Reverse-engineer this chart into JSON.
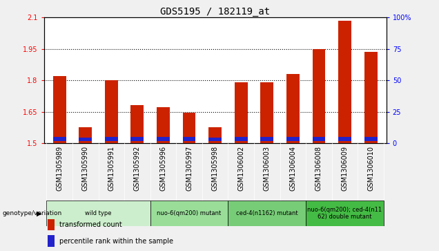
{
  "title": "GDS5195 / 182119_at",
  "samples": [
    "GSM1305989",
    "GSM1305990",
    "GSM1305991",
    "GSM1305992",
    "GSM1305996",
    "GSM1305997",
    "GSM1305998",
    "GSM1306002",
    "GSM1306003",
    "GSM1306004",
    "GSM1306008",
    "GSM1306009",
    "GSM1306010"
  ],
  "red_values": [
    1.82,
    1.575,
    1.8,
    1.68,
    1.67,
    1.645,
    1.575,
    1.79,
    1.79,
    1.83,
    1.95,
    2.085,
    1.935
  ],
  "blue_values": [
    0.022,
    0.018,
    0.022,
    0.022,
    0.022,
    0.02,
    0.018,
    0.02,
    0.02,
    0.022,
    0.022,
    0.022,
    0.022
  ],
  "ymin": 1.5,
  "ymax": 2.1,
  "yticks_left": [
    1.5,
    1.65,
    1.8,
    1.95,
    2.1
  ],
  "yticks_right": [
    0,
    25,
    50,
    75,
    100
  ],
  "bar_color": "#cc2200",
  "blue_color": "#2222cc",
  "genotype_groups": [
    {
      "label": "wild type",
      "start": 0,
      "end": 4,
      "color": "#cceecc"
    },
    {
      "label": "nuo-6(qm200) mutant",
      "start": 4,
      "end": 7,
      "color": "#99dd99"
    },
    {
      "label": "ced-4(n1162) mutant",
      "start": 7,
      "end": 10,
      "color": "#77cc77"
    },
    {
      "label": "nuo-6(qm200); ced-4(n11\n62) double mutant",
      "start": 10,
      "end": 13,
      "color": "#44bb44"
    }
  ],
  "genotype_label": "genotype/variation",
  "legend_red": "transformed count",
  "legend_blue": "percentile rank within the sample",
  "fig_bg_color": "#f0f0f0",
  "plot_bg_color": "#ffffff",
  "xtick_bg_color": "#cccccc",
  "title_fontsize": 10,
  "axis_fontsize": 7,
  "bar_width": 0.5,
  "grid_lines": [
    1.65,
    1.8,
    1.95
  ]
}
